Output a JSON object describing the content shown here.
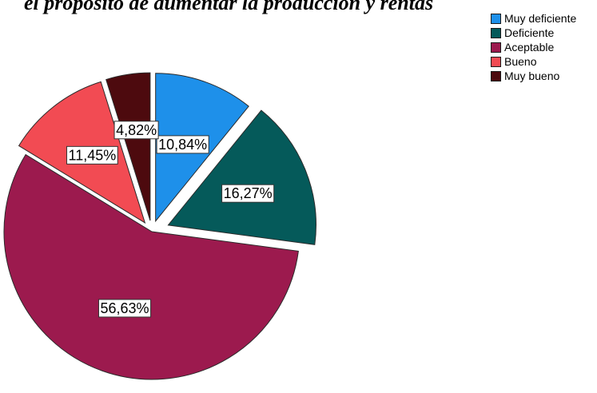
{
  "chart_data": {
    "type": "pie",
    "title": "el propósito de aumentar la producción y rentas",
    "categories": [
      "Muy deficiente",
      "Deficiente",
      "Aceptable",
      "Bueno",
      "Muy bueno"
    ],
    "values": [
      10.84,
      16.27,
      56.63,
      11.45,
      4.82
    ],
    "labels": [
      "10,84%",
      "16,27%",
      "56,63%",
      "11,45%",
      "4,82%"
    ],
    "colors": [
      "#1e90ea",
      "#055a5a",
      "#9c1a4e",
      "#f24b53",
      "#4d0a0e"
    ],
    "start_angle_deg": 0,
    "direction": "clockwise",
    "exploded": true,
    "legend_position": "top-right"
  }
}
